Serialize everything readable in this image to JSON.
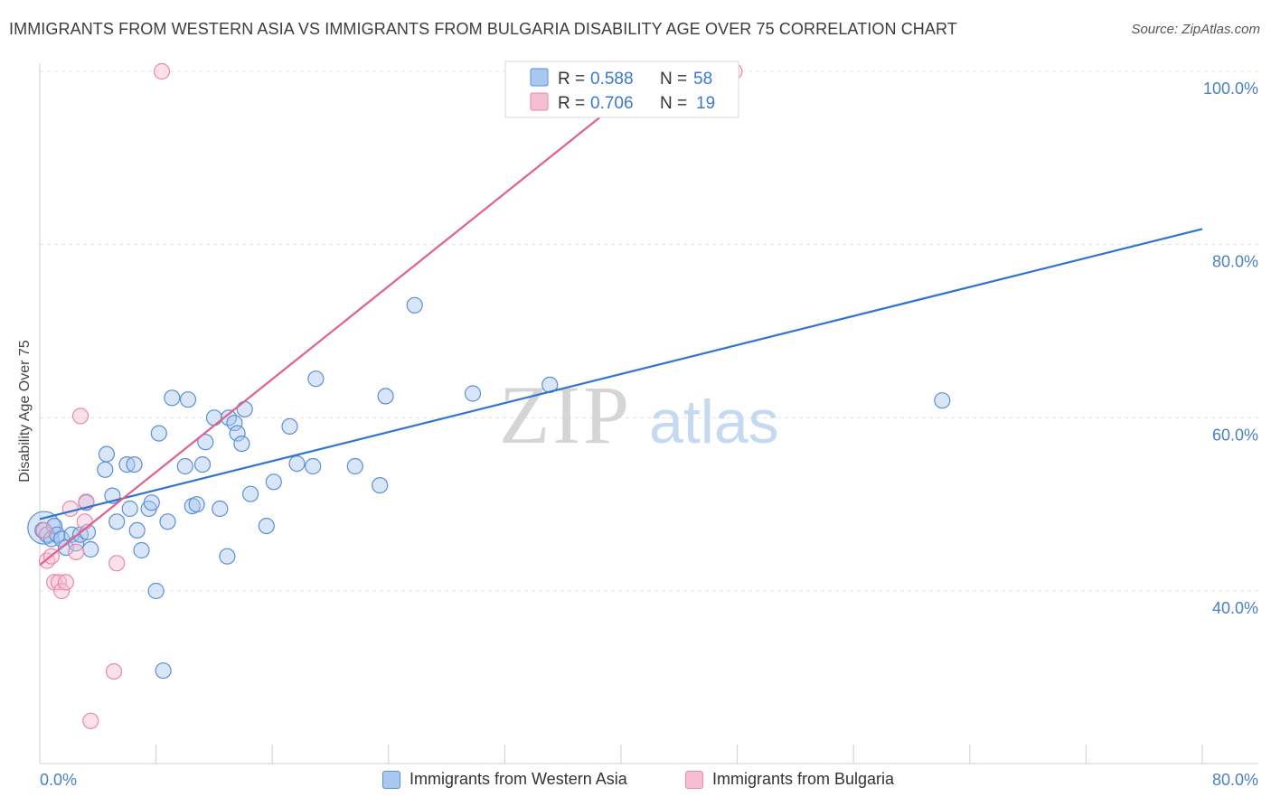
{
  "chart_data": {
    "type": "scatter",
    "title": "IMMIGRANTS FROM WESTERN ASIA VS IMMIGRANTS FROM BULGARIA DISABILITY AGE OVER 75 CORRELATION CHART",
    "source": "Source: ZipAtlas.com",
    "ylabel": "Disability Age Over 75",
    "xlabel": "",
    "xlim": [
      0,
      80
    ],
    "ylim": [
      20,
      102
    ],
    "x_tick_labels": [
      "0.0%",
      "80.0%"
    ],
    "y_ticks": [
      {
        "value": 40,
        "label": "40.0%"
      },
      {
        "value": 60,
        "label": "60.0%"
      },
      {
        "value": 80,
        "label": "80.0%"
      },
      {
        "value": 100,
        "label": "100.0%"
      }
    ],
    "watermark": {
      "zip": "ZIP",
      "atlas": "atlas"
    },
    "legend": {
      "r_label": "R =",
      "n_label": "N =",
      "entries": [
        {
          "r": "0.588",
          "n": "58"
        },
        {
          "r": "0.706",
          "n": "19"
        }
      ]
    },
    "series": [
      {
        "name": "Immigrants from Western Asia",
        "color": "#5b8fd6",
        "fill": "#a9c8f0",
        "trend_color": "#2f74cf",
        "trend": {
          "x0": 0,
          "y0": 48.3,
          "x1": 80,
          "y1": 81.8
        },
        "points": [
          [
            0.2,
            47.0
          ],
          [
            0.5,
            46.5
          ],
          [
            0.8,
            46.0
          ],
          [
            1.0,
            47.5
          ],
          [
            1.2,
            46.5
          ],
          [
            1.5,
            46.0
          ],
          [
            1.8,
            45.0
          ],
          [
            2.2,
            46.5
          ],
          [
            2.5,
            45.5
          ],
          [
            2.8,
            46.5
          ],
          [
            3.3,
            46.8
          ],
          [
            3.5,
            44.8
          ],
          [
            3.2,
            50.2
          ],
          [
            4.6,
            55.8
          ],
          [
            4.5,
            54.0
          ],
          [
            5.0,
            51.0
          ],
          [
            5.3,
            48.0
          ],
          [
            6.0,
            54.6
          ],
          [
            6.2,
            49.5
          ],
          [
            6.5,
            54.6
          ],
          [
            6.7,
            47.0
          ],
          [
            7.0,
            44.7
          ],
          [
            7.5,
            49.5
          ],
          [
            7.7,
            50.2
          ],
          [
            8.0,
            40.0
          ],
          [
            8.2,
            58.2
          ],
          [
            8.5,
            30.8
          ],
          [
            8.8,
            48.0
          ],
          [
            9.1,
            62.3
          ],
          [
            10.0,
            54.4
          ],
          [
            10.2,
            62.1
          ],
          [
            10.5,
            49.8
          ],
          [
            10.8,
            50.0
          ],
          [
            11.2,
            54.6
          ],
          [
            11.4,
            57.2
          ],
          [
            12.0,
            60.0
          ],
          [
            12.4,
            49.5
          ],
          [
            13.0,
            60.0
          ],
          [
            12.9,
            44.0
          ],
          [
            13.4,
            59.4
          ],
          [
            13.6,
            58.2
          ],
          [
            13.9,
            57.0
          ],
          [
            14.1,
            61.0
          ],
          [
            14.5,
            51.2
          ],
          [
            15.6,
            47.5
          ],
          [
            16.1,
            52.6
          ],
          [
            17.2,
            59.0
          ],
          [
            17.7,
            54.7
          ],
          [
            18.8,
            54.4
          ],
          [
            19.0,
            64.5
          ],
          [
            21.7,
            54.4
          ],
          [
            23.4,
            52.2
          ],
          [
            23.8,
            62.5
          ],
          [
            25.8,
            73.0
          ],
          [
            29.8,
            62.8
          ],
          [
            35.1,
            63.8
          ],
          [
            62.1,
            62.0
          ]
        ]
      },
      {
        "name": "Immigrants from Bulgaria",
        "color": "#e889a8",
        "fill": "#f6bfd1",
        "trend_color": "#e0628c",
        "trend": {
          "x0": 0,
          "y0": 43.0,
          "x1": 42.5,
          "y1": 100.0
        },
        "points": [
          [
            0.3,
            47.0
          ],
          [
            0.5,
            43.5
          ],
          [
            0.8,
            44.0
          ],
          [
            1.0,
            41.0
          ],
          [
            1.3,
            41.0
          ],
          [
            1.5,
            40.0
          ],
          [
            1.8,
            41.0
          ],
          [
            2.1,
            49.5
          ],
          [
            2.5,
            44.5
          ],
          [
            2.8,
            60.2
          ],
          [
            3.1,
            48.0
          ],
          [
            3.2,
            50.3
          ],
          [
            3.5,
            25.0
          ],
          [
            5.1,
            30.7
          ],
          [
            5.3,
            43.2
          ],
          [
            8.4,
            100.0
          ],
          [
            47.8,
            100.0
          ]
        ]
      }
    ]
  },
  "bottom_legend": {
    "western_asia": "Immigrants from Western Asia",
    "bulgaria": "Immigrants from Bulgaria"
  }
}
